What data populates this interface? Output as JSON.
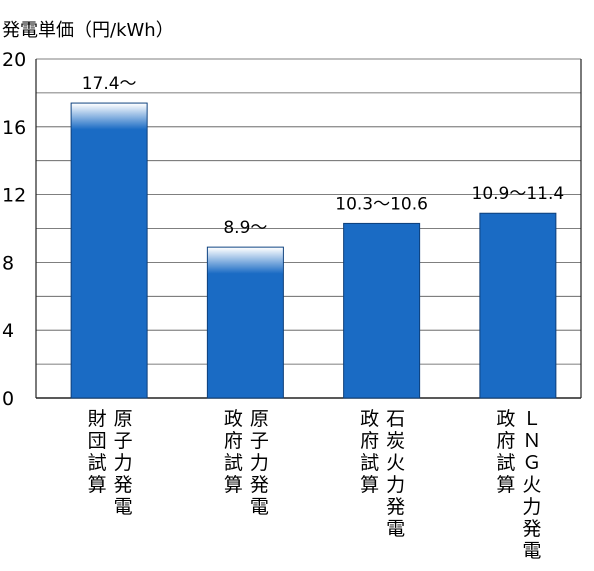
{
  "chart_data": {
    "type": "bar",
    "title": "",
    "ylabel": "発電単価（円/kWh）",
    "xlabel": "",
    "ylim": [
      0,
      20
    ],
    "yticks": [
      "0",
      "4",
      "8",
      "12",
      "16",
      "20"
    ],
    "grid": true,
    "bar_color": "#1a6bc4",
    "categories": [
      {
        "col1": "財団試算",
        "col2": "原子力発電",
        "value": 17.4,
        "label": "17.4〜",
        "open_ended": true
      },
      {
        "col1": "政府試算",
        "col2": "原子力発電",
        "value": 8.9,
        "label": "8.9〜",
        "open_ended": true
      },
      {
        "col1": "政府試算",
        "col2": "石炭火力発電",
        "value": 10.3,
        "label": "10.3〜10.6",
        "open_ended": false
      },
      {
        "col1": "政府試算",
        "col2": "ＬＮＧ火力発電",
        "value": 10.9,
        "label": "10.9〜11.4",
        "open_ended": false
      }
    ]
  }
}
